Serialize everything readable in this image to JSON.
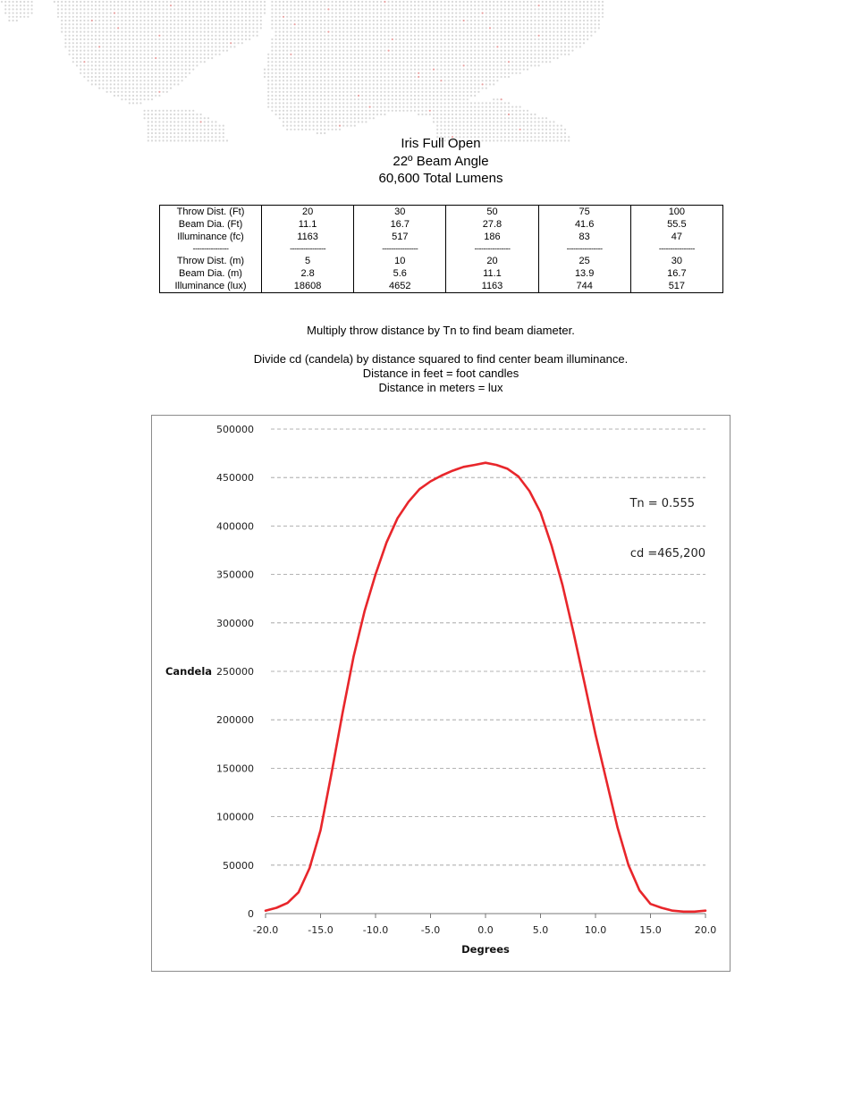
{
  "header": {
    "title_line1": "Iris Full Open",
    "title_line2": "22º Beam Angle",
    "title_line3": "60,600 Total Lumens"
  },
  "table": {
    "rows": [
      {
        "label": "Throw Dist. (Ft)",
        "values": [
          "20",
          "30",
          "50",
          "75",
          "100"
        ]
      },
      {
        "label": "Beam Dia. (Ft)",
        "values": [
          "11.1",
          "16.7",
          "27.8",
          "41.6",
          "55.5"
        ]
      },
      {
        "label": "Illuminance (fc)",
        "values": [
          "1163",
          "517",
          "186",
          "83",
          "47"
        ]
      },
      {
        "label": "----------------",
        "values": [
          "----------------",
          "----------------",
          "----------------",
          "----------------",
          "----------------"
        ]
      },
      {
        "label": "Throw Dist. (m)",
        "values": [
          "5",
          "10",
          "20",
          "25",
          "30"
        ]
      },
      {
        "label": "Beam Dia. (m)",
        "values": [
          "2.8",
          "5.6",
          "11.1",
          "13.9",
          "16.7"
        ]
      },
      {
        "label": "Illuminance (lux)",
        "values": [
          "18608",
          "4652",
          "1163",
          "744",
          "517"
        ]
      }
    ]
  },
  "notes": {
    "line1": "Multiply throw distance by Tn to find beam diameter.",
    "line2": "Divide cd (candela) by distance squared to find center beam illuminance.",
    "line3": "Distance in feet = foot candles",
    "line4": "Distance in meters = lux"
  },
  "colors": {
    "curve": "#e8262b",
    "grid": "#9a9a9a",
    "map_dot": "#d8d8d8",
    "map_accent": "#e7a0a0"
  },
  "chart_data": {
    "type": "line",
    "title": "",
    "xlabel": "Degrees",
    "ylabel": "Candela",
    "xlim": [
      -20,
      20
    ],
    "ylim": [
      0,
      500000
    ],
    "xticks": [
      "-20.0",
      "-15.0",
      "-10.0",
      "-5.0",
      "0.0",
      "5.0",
      "10.0",
      "15.0",
      "20.0"
    ],
    "yticks": [
      "0",
      "50000",
      "100000",
      "150000",
      "200000",
      "250000",
      "300000",
      "350000",
      "400000",
      "450000",
      "500000"
    ],
    "grid": "horizontal dashed",
    "legend": "none",
    "annotations": [
      "Tn = 0.555",
      "cd =465,200"
    ],
    "series": [
      {
        "x": [
          -20,
          -19,
          -18,
          -17,
          -16,
          -15,
          -14,
          -13,
          -12,
          -11,
          -10,
          -9,
          -8,
          -7,
          -6,
          -5,
          -4,
          -3,
          -2,
          -1,
          0,
          1,
          2,
          3,
          4,
          5,
          6,
          7,
          8,
          9,
          10,
          11,
          12,
          13,
          14,
          15,
          16,
          17,
          18,
          19,
          20
        ],
        "y": [
          3000,
          6000,
          11000,
          22000,
          47000,
          86000,
          145000,
          207000,
          265000,
          312000,
          350000,
          383000,
          408000,
          425000,
          438000,
          446000,
          452000,
          457000,
          461000,
          463000,
          465200,
          463000,
          459000,
          451000,
          436000,
          414000,
          380000,
          339000,
          290000,
          238000,
          185000,
          137000,
          89000,
          50000,
          24000,
          10000,
          6000,
          3000,
          2000,
          2000,
          3000
        ]
      }
    ]
  }
}
